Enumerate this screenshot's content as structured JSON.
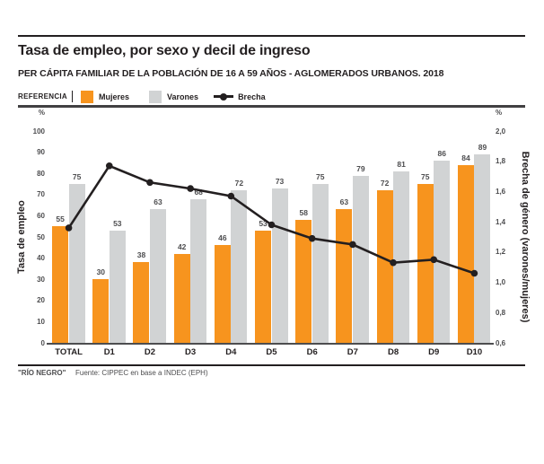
{
  "header": {
    "title": "Tasa de empleo, por sexo y decil de ingreso",
    "subtitle": "PER CÁPITA FAMILIAR DE LA POBLACIÓN DE 16 A 59 AÑOS - AGLOMERADOS URBANOS. 2018"
  },
  "legend": {
    "title": "REFERENCIA",
    "items": [
      {
        "label": "Mujeres",
        "swatch": "square",
        "color": "#F7941E"
      },
      {
        "label": "Varones",
        "swatch": "square",
        "color": "#D1D3D4"
      },
      {
        "label": "Brecha",
        "swatch": "line-dot",
        "color": "#231F20"
      }
    ]
  },
  "chart_data": {
    "type": "bar",
    "subtype": "grouped bars with secondary-axis line",
    "categories": [
      "TOTAL",
      "D1",
      "D2",
      "D3",
      "D4",
      "D5",
      "D6",
      "D7",
      "D8",
      "D9",
      "D10"
    ],
    "series": [
      {
        "name": "Mujeres",
        "type": "bar",
        "color": "#F7941E",
        "values": [
          55,
          30,
          38,
          42,
          46,
          53,
          58,
          63,
          72,
          75,
          84
        ]
      },
      {
        "name": "Varones",
        "type": "bar",
        "color": "#D1D3D4",
        "values": [
          75,
          53,
          63,
          68,
          72,
          73,
          75,
          79,
          81,
          86,
          89
        ]
      },
      {
        "name": "Brecha",
        "type": "line",
        "color": "#231F20",
        "axis": "right",
        "values": [
          1.36,
          1.77,
          1.66,
          1.62,
          1.57,
          1.38,
          1.29,
          1.25,
          1.13,
          1.15,
          1.06
        ]
      }
    ],
    "value_labels": true,
    "grid": false,
    "legend_position": "top",
    "left_axis": {
      "unit": "%",
      "label": "Tasa de empleo",
      "min": 0,
      "max": 100,
      "ticks": [
        0,
        10,
        20,
        30,
        40,
        50,
        60,
        70,
        80,
        90,
        100
      ]
    },
    "right_axis": {
      "unit": "%",
      "label": "Brecha de género (varones/mujeres)",
      "min": 0.6,
      "max": 2.0,
      "ticks": [
        "0,6",
        "0,8",
        "1,0",
        "1,2",
        "1,4",
        "1,6",
        "1,8",
        "2,0"
      ]
    }
  },
  "footer": {
    "credit": "\"RÍO NEGRO\"",
    "source": "Fuente: CIPPEC en base a INDEC (EPH)"
  }
}
